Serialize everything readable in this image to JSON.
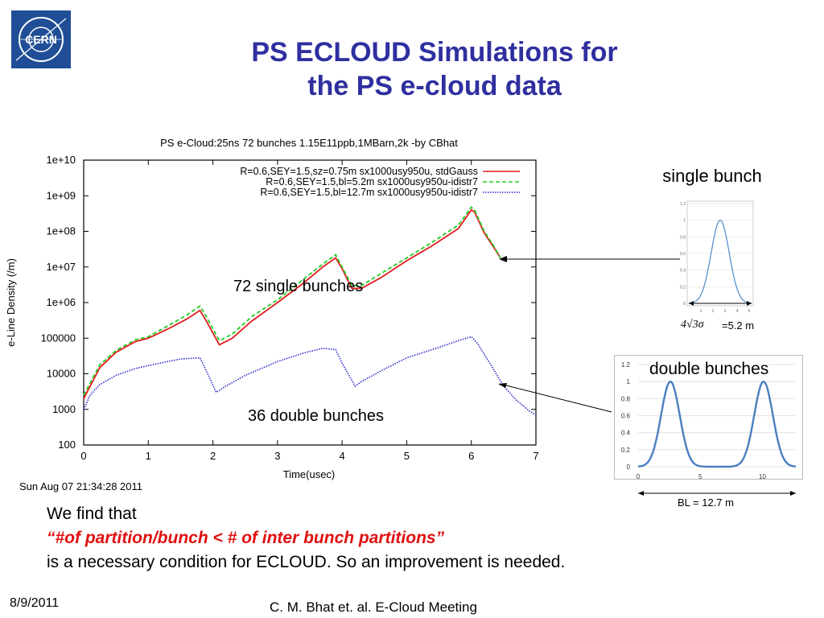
{
  "slide": {
    "title_line1": "PS ECLOUD Simulations for",
    "title_line2": "the PS e-cloud data",
    "logo_text": "CERN",
    "annotation_72": "72 single bunches",
    "annotation_36": "36 double bunches",
    "single_bunch_label": "single bunch",
    "double_bunches_label": "double bunches",
    "single_width_formula": "4√3σ",
    "single_width_value": "=5.2 m",
    "bl_label": "BL = 12.7 m",
    "text_line1": "We find that",
    "text_line2": "“#of partition/bunch  < # of inter bunch partitions”",
    "text_line3": "is a necessary condition for ECLOUD. So an improvement is needed.",
    "footer_date": "8/9/2011",
    "footer_credit": "C. M. Bhat et. al. E-Cloud Meeting",
    "colors": {
      "title": "#2f2fa0",
      "highlight": "#e01010",
      "logo_bg": "#1f4e96"
    }
  },
  "chart_data": [
    {
      "type": "line",
      "title": "PS e-Cloud:25ns 72 bunches 1.15E11ppb,1MBarn,2k -by CBhat",
      "xlabel": "Time(usec)",
      "ylabel": "e-Line Density (/m)",
      "timestamp": "Sun Aug 07 21:34:28 2011",
      "xlim": [
        0,
        7
      ],
      "ylim": [
        100,
        10000000000
      ],
      "yscale": "log",
      "x_ticks": [
        "0",
        "1",
        "2",
        "3",
        "4",
        "5",
        "6",
        "7"
      ],
      "y_ticks": [
        "100",
        "1000",
        "10000",
        "100000",
        "1e+06",
        "1e+07",
        "1e+08",
        "1e+09",
        "1e+10"
      ],
      "legend_position": "top-right",
      "series": [
        {
          "name": "R=0.6,SEY=1.5,sz=0.75m sx1000usy950u, stdGauss",
          "color": "#e41a1c",
          "style": "solid",
          "points": [
            [
              0,
              2000
            ],
            [
              0.25,
              15000
            ],
            [
              0.5,
              40000
            ],
            [
              0.8,
              80000
            ],
            [
              1.0,
              100000
            ],
            [
              1.3,
              180000
            ],
            [
              1.6,
              350000
            ],
            [
              1.8,
              600000
            ],
            [
              1.9,
              300000
            ],
            [
              2.1,
              65000
            ],
            [
              2.3,
              100000
            ],
            [
              2.6,
              300000
            ],
            [
              3.0,
              1000000
            ],
            [
              3.4,
              3500000
            ],
            [
              3.7,
              10000000
            ],
            [
              3.9,
              18000000
            ],
            [
              4.0,
              9000000
            ],
            [
              4.15,
              2500000
            ],
            [
              4.3,
              2500000
            ],
            [
              4.6,
              5000000
            ],
            [
              5.0,
              15000000
            ],
            [
              5.4,
              40000000
            ],
            [
              5.8,
              120000000
            ],
            [
              6.0,
              400000000
            ],
            [
              6.05,
              350000000
            ],
            [
              6.2,
              90000000
            ],
            [
              6.35,
              35000000
            ],
            [
              6.45,
              18000000
            ]
          ]
        },
        {
          "name": "R=0.6,SEY=1.5,bl=5.2m sx1000usy950u-idistr7",
          "color": "#22cc22",
          "style": "dashed",
          "points": [
            [
              0,
              2500
            ],
            [
              0.25,
              18000
            ],
            [
              0.5,
              45000
            ],
            [
              0.8,
              90000
            ],
            [
              1.0,
              110000
            ],
            [
              1.3,
              220000
            ],
            [
              1.6,
              450000
            ],
            [
              1.8,
              800000
            ],
            [
              1.9,
              400000
            ],
            [
              2.1,
              85000
            ],
            [
              2.3,
              130000
            ],
            [
              2.6,
              400000
            ],
            [
              3.0,
              1200000
            ],
            [
              3.4,
              4500000
            ],
            [
              3.7,
              12000000
            ],
            [
              3.9,
              22000000
            ],
            [
              4.0,
              10000000
            ],
            [
              4.15,
              3000000
            ],
            [
              4.3,
              3000000
            ],
            [
              4.6,
              6500000
            ],
            [
              5.0,
              18000000
            ],
            [
              5.4,
              50000000
            ],
            [
              5.8,
              150000000
            ],
            [
              6.0,
              480000000
            ],
            [
              6.05,
              400000000
            ],
            [
              6.2,
              100000000
            ],
            [
              6.35,
              38000000
            ],
            [
              6.45,
              18000000
            ]
          ]
        },
        {
          "name": "R=0.6,SEY=1.5,bl=12.7m sx1000usy950u-idistr7",
          "color": "#2a2acc",
          "style": "dotted",
          "points": [
            [
              0,
              1000
            ],
            [
              0.1,
              2500
            ],
            [
              0.25,
              5000
            ],
            [
              0.5,
              9000
            ],
            [
              0.8,
              14000
            ],
            [
              1.0,
              17000
            ],
            [
              1.3,
              22000
            ],
            [
              1.5,
              26000
            ],
            [
              1.8,
              28000
            ],
            [
              1.9,
              12000
            ],
            [
              2.05,
              3000
            ],
            [
              2.2,
              4500
            ],
            [
              2.5,
              9000
            ],
            [
              3.0,
              22000
            ],
            [
              3.4,
              38000
            ],
            [
              3.7,
              52000
            ],
            [
              3.9,
              48000
            ],
            [
              4.0,
              20000
            ],
            [
              4.2,
              4500
            ],
            [
              4.3,
              6000
            ],
            [
              4.6,
              12000
            ],
            [
              5.0,
              28000
            ],
            [
              5.5,
              55000
            ],
            [
              5.8,
              85000
            ],
            [
              6.0,
              110000
            ],
            [
              6.1,
              70000
            ],
            [
              6.3,
              18000
            ],
            [
              6.5,
              4500
            ],
            [
              6.7,
              1800
            ],
            [
              6.9,
              900
            ],
            [
              7.0,
              700
            ]
          ]
        }
      ]
    },
    {
      "type": "line",
      "title": "single bunch",
      "ylim": [
        0,
        1.2
      ],
      "y_ticks": [
        "0",
        "0.2",
        "0.4",
        "0.6",
        "0.8",
        "1",
        "1.2"
      ],
      "x_ticks": [
        "1",
        "2",
        "3",
        "4",
        "5"
      ],
      "series": [
        {
          "color": "#5a8fcf",
          "peaks": [
            2.6
          ],
          "sigma": 0.75,
          "xrange": [
            0,
            5.2
          ]
        }
      ]
    },
    {
      "type": "line",
      "title": "double bunches",
      "ylim": [
        0,
        1.2
      ],
      "xlim": [
        0,
        12.7
      ],
      "y_ticks": [
        "0",
        "0.2",
        "0.4",
        "0.6",
        "0.8",
        "1",
        "1.2"
      ],
      "x_ticks": [
        "0",
        "5",
        "10"
      ],
      "series": [
        {
          "color": "#4a7fc0",
          "peaks": [
            2.6,
            10.1
          ],
          "sigma": 0.75
        }
      ]
    }
  ]
}
